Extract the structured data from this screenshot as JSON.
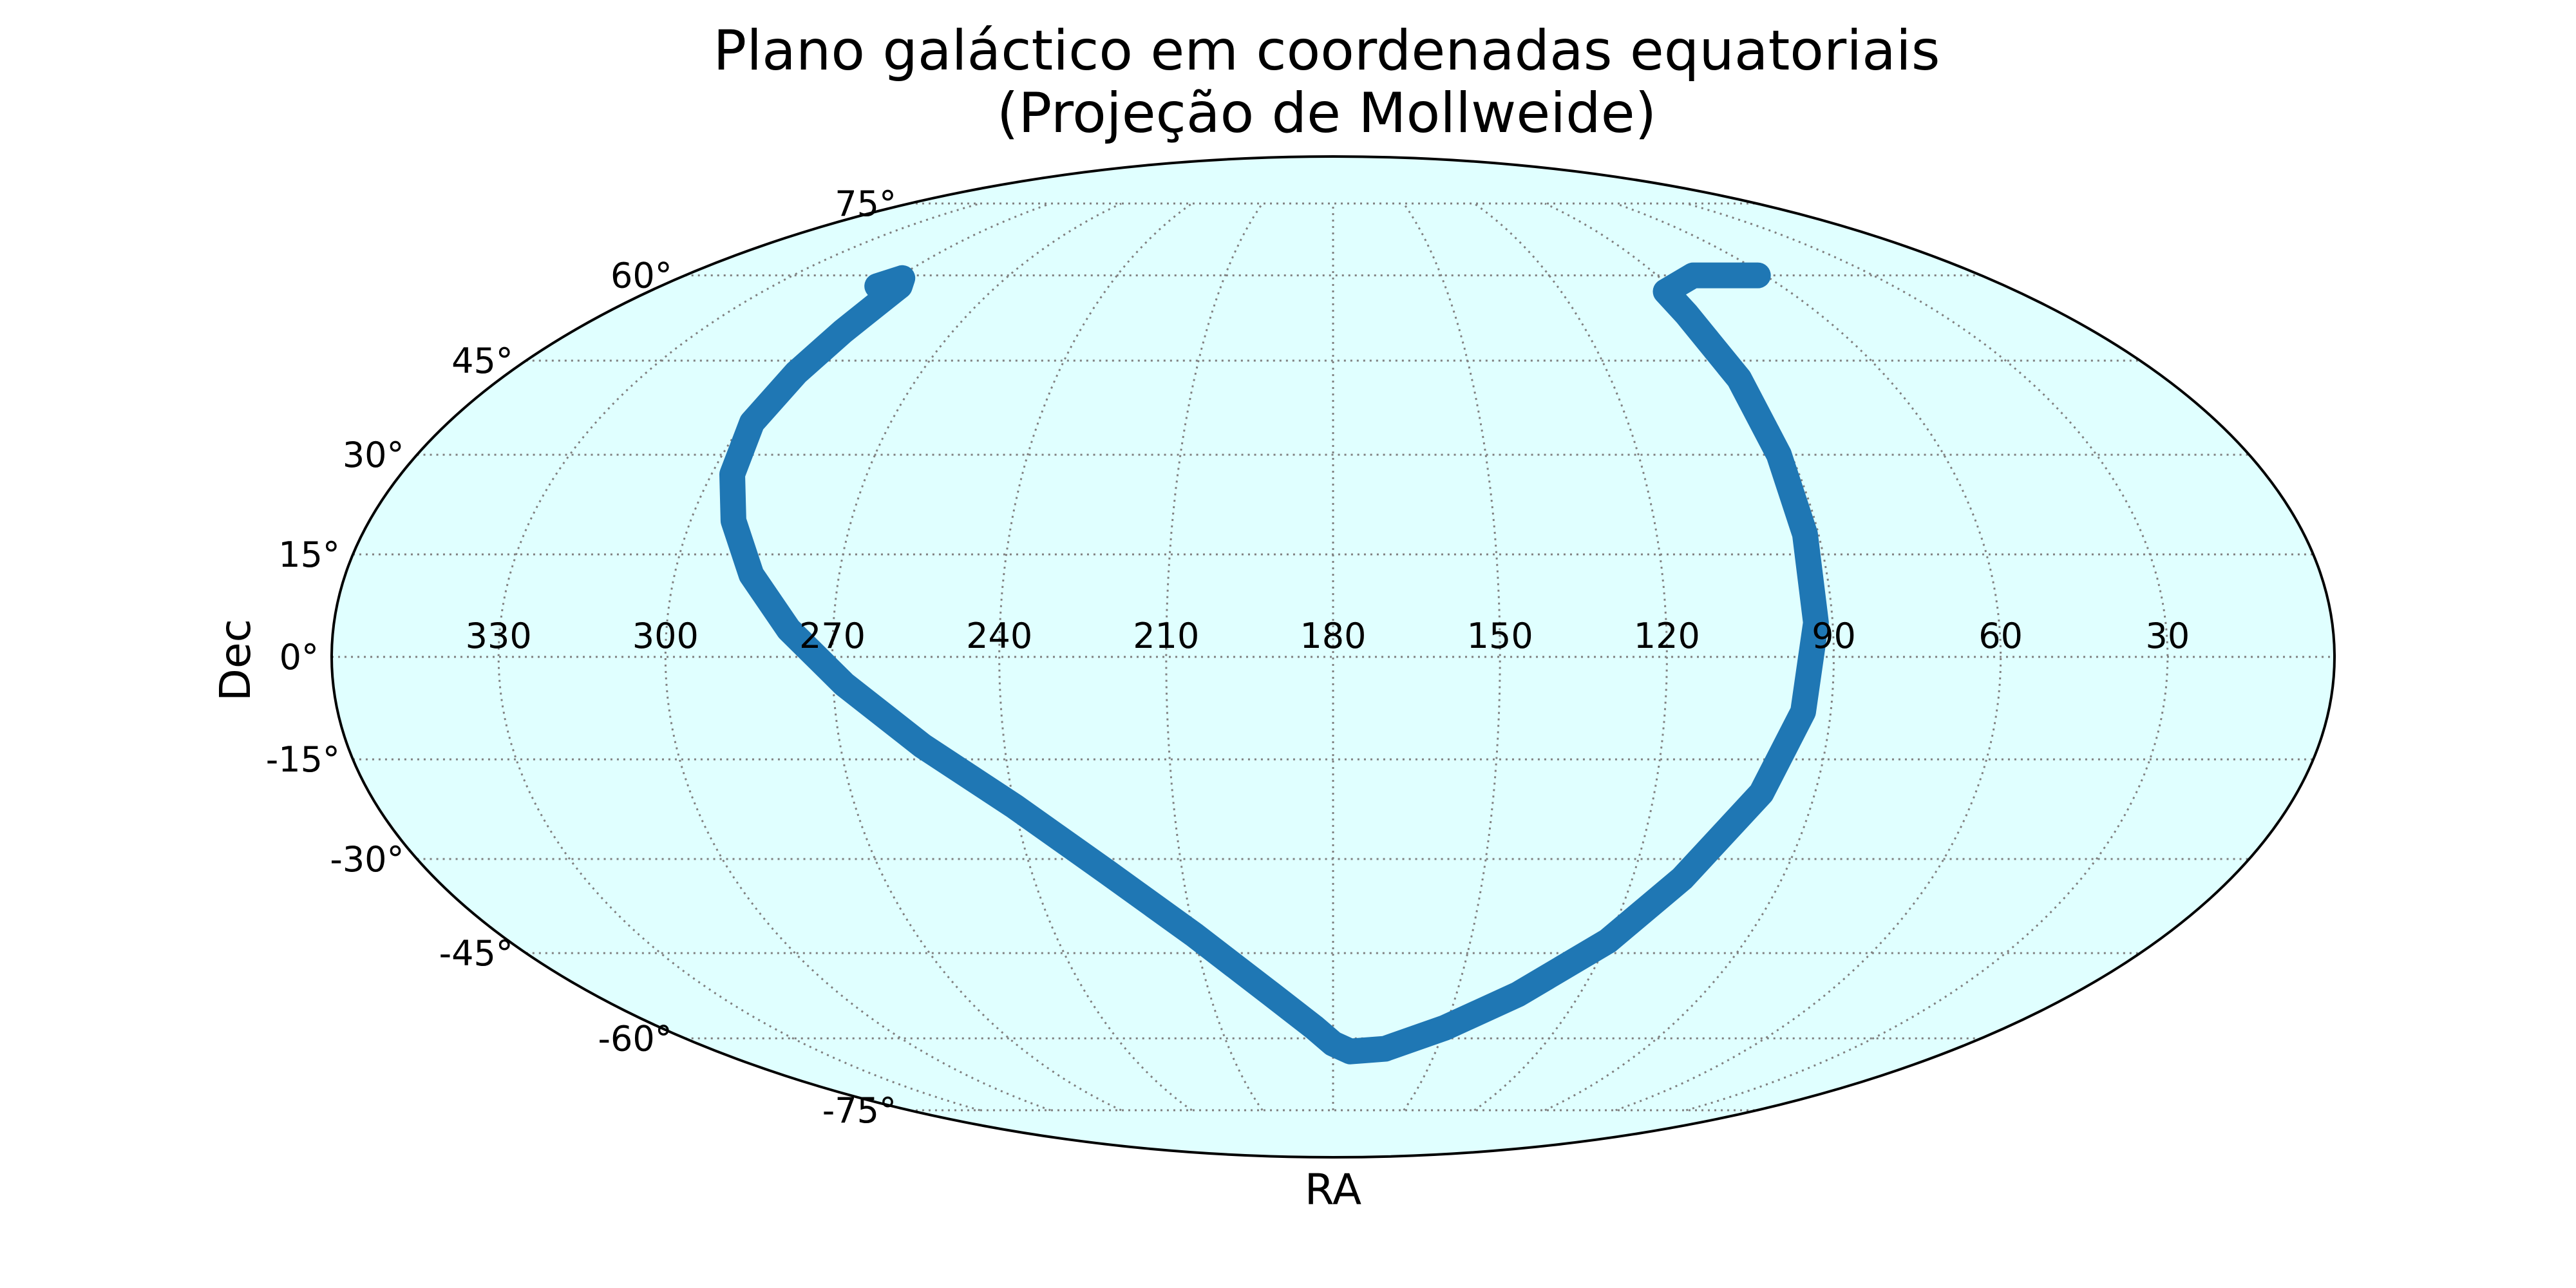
{
  "chart_data": {
    "type": "scatter",
    "projection": "mollweide",
    "title": "Plano galáctico em coordenadas equatoriais",
    "subtitle": "(Projeção de Mollweide)",
    "xlabel": "RA",
    "ylabel": "Dec",
    "x_ticks": [
      {
        "value": 330,
        "label": "330"
      },
      {
        "value": 300,
        "label": "300"
      },
      {
        "value": 270,
        "label": "270"
      },
      {
        "value": 240,
        "label": "240"
      },
      {
        "value": 210,
        "label": "210"
      },
      {
        "value": 180,
        "label": "180"
      },
      {
        "value": 150,
        "label": "150"
      },
      {
        "value": 120,
        "label": "120"
      },
      {
        "value": 90,
        "label": "90"
      },
      {
        "value": 60,
        "label": "60"
      },
      {
        "value": 30,
        "label": "30"
      }
    ],
    "y_ticks": [
      {
        "value": 75,
        "label": "75°"
      },
      {
        "value": 60,
        "label": "60°"
      },
      {
        "value": 45,
        "label": "45°"
      },
      {
        "value": 30,
        "label": "30°"
      },
      {
        "value": 15,
        "label": "15°"
      },
      {
        "value": 0,
        "label": "0°"
      },
      {
        "value": -15,
        "label": "-15°"
      },
      {
        "value": -30,
        "label": "-30°"
      },
      {
        "value": -45,
        "label": "-45°"
      },
      {
        "value": -60,
        "label": "-60°"
      },
      {
        "value": -75,
        "label": "-75°"
      }
    ],
    "xlim": [
      360,
      0
    ],
    "ylim": [
      -90,
      90
    ],
    "grid": true,
    "series": [
      {
        "color": "#1f77b4",
        "description_points": "galactic plane, RA (deg) vs Dec (deg)",
        "ra": [
          302.0,
          298.5,
          296.0,
          295.6,
          296.0,
          297.2,
          298.2,
          296.0,
          292.0,
          286.0,
          278.0,
          268.0,
          255.0,
          240.0,
          225.0,
          210.0,
          195.0,
          185.0,
          180.0,
          175.0,
          165.0,
          150.0,
          135.0,
          120.0,
          110.0,
          100.0,
          95.0,
          93.0,
          92.5,
          92.4,
          92.2,
          92.8,
          92.5,
          80.0,
          62.0
        ],
        "dec": [
          58.0,
          59.5,
          58.0,
          55.0,
          50.0,
          43.0,
          35.0,
          27.0,
          20.0,
          12.0,
          4.0,
          -4.0,
          -13.0,
          -22.0,
          -32.0,
          -42.0,
          -52.0,
          -58.0,
          -61.0,
          -62.5,
          -62.0,
          -58.0,
          -52.0,
          -43.0,
          -33.0,
          -20.0,
          -8.0,
          5.0,
          18.0,
          30.0,
          42.0,
          53.0,
          57.0,
          60.0,
          60.0
        ]
      }
    ]
  },
  "colors": {
    "sphere_fill": "#e0ffff",
    "outline": "#000000",
    "grid": "#808080",
    "series": "#1f77b4"
  }
}
